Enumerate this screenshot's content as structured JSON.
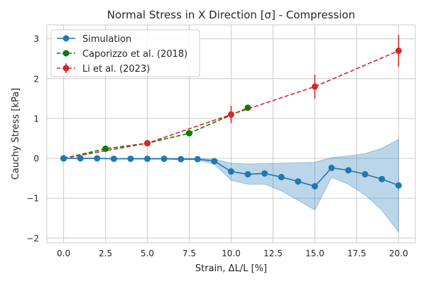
{
  "chart_data": {
    "type": "line",
    "title": "Normal Stress in X Direction [σ] - Compression",
    "xlabel": "Strain, ΔL/L [%]",
    "ylabel": "Cauchy Stress [kPa]",
    "xlim": [
      -1.0,
      21.0
    ],
    "ylim": [
      -2.12,
      3.35
    ],
    "xticks": [
      0.0,
      2.5,
      5.0,
      7.5,
      10.0,
      12.5,
      15.0,
      17.5,
      20.0
    ],
    "xtick_labels": [
      "0.0",
      "2.5",
      "5.0",
      "7.5",
      "10.0",
      "12.5",
      "15.0",
      "17.5",
      "20.0"
    ],
    "yticks": [
      -2,
      -1,
      0,
      1,
      2,
      3
    ],
    "ytick_labels": [
      "−2",
      "−1",
      "0",
      "1",
      "2",
      "3"
    ],
    "grid": true,
    "legend_position": "top-left",
    "series": [
      {
        "name": "Simulation",
        "color": "#1f77b4",
        "style": "solid",
        "x": [
          0,
          1,
          2,
          3,
          4,
          5,
          6,
          7,
          8,
          9,
          10,
          11,
          12,
          13,
          14,
          15,
          16,
          17,
          18,
          19,
          20
        ],
        "y": [
          0.0,
          0.0,
          0.0,
          -0.01,
          -0.01,
          -0.01,
          -0.01,
          -0.02,
          -0.02,
          -0.07,
          -0.33,
          -0.4,
          -0.38,
          -0.47,
          -0.58,
          -0.7,
          -0.24,
          -0.3,
          -0.4,
          -0.52,
          -0.68
        ],
        "band_lower": [
          0.0,
          -0.01,
          -0.01,
          -0.02,
          -0.02,
          -0.02,
          -0.02,
          -0.03,
          -0.04,
          -0.15,
          -0.55,
          -0.65,
          -0.65,
          -0.82,
          -1.05,
          -1.3,
          -0.48,
          -0.65,
          -0.92,
          -1.3,
          -1.85
        ],
        "band_upper": [
          0.0,
          0.01,
          0.01,
          0.0,
          0.0,
          0.0,
          0.0,
          0.0,
          0.0,
          -0.02,
          -0.12,
          -0.14,
          -0.13,
          -0.12,
          -0.11,
          -0.1,
          0.02,
          0.06,
          0.12,
          0.25,
          0.48
        ]
      },
      {
        "name": "Caporizzo et al. (2018)",
        "color": "#008000",
        "style": "dashed",
        "x": [
          0.0,
          2.5,
          5.0,
          7.5,
          11.0
        ],
        "y": [
          0.0,
          0.24,
          0.38,
          0.63,
          1.27
        ]
      },
      {
        "name": "Li et al. (2023)",
        "color": "#d62728",
        "style": "dashed",
        "x": [
          0.0,
          5.0,
          10.0,
          15.0,
          20.0
        ],
        "y": [
          0.0,
          0.38,
          1.1,
          1.8,
          2.7
        ],
        "yerr": [
          0.0,
          0.0,
          0.22,
          0.3,
          0.4
        ]
      }
    ]
  }
}
